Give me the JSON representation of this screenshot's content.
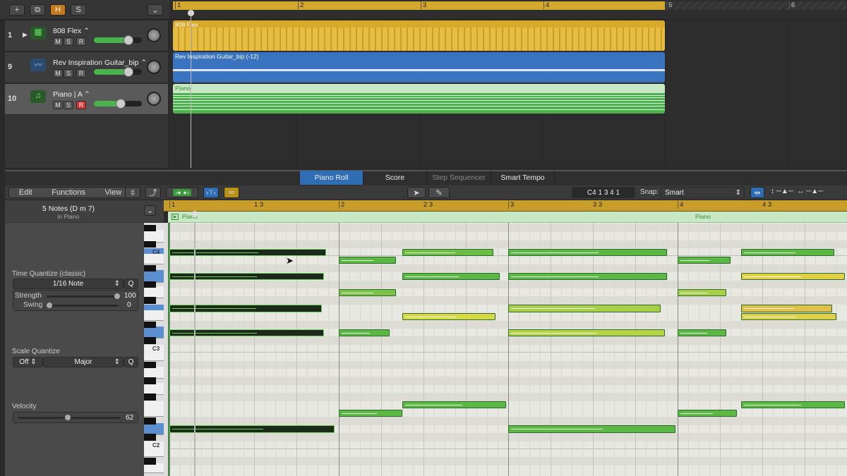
{
  "toolbar": {
    "add": "+",
    "duplicate_icon": "duplicate-track-icon",
    "h": "H",
    "s": "S"
  },
  "ruler": {
    "bars": [
      "1",
      "2",
      "3",
      "4",
      "5",
      "6"
    ]
  },
  "tracks": [
    {
      "num": "1",
      "name": "808 Flex ⌃",
      "icon": "drum-machine-icon",
      "m": "M",
      "s": "S",
      "r": "R",
      "volume": 0.72,
      "record_armed": false,
      "region": "808 Flex",
      "region_color": "#d9a92a"
    },
    {
      "num": "9",
      "name": "Rev Inspiration Guitar_bip ⌃",
      "icon": "waveform-icon",
      "m": "M",
      "s": "S",
      "r": "R",
      "volume": 0.72,
      "record_armed": false,
      "region": "Rev Inspiration Guitar_bip (-12)",
      "region_color": "#3a74c0"
    },
    {
      "num": "10",
      "name": "Piano  |  A ⌃",
      "icon": "music-note-icon",
      "m": "M",
      "s": "S",
      "r": "R",
      "volume": 0.56,
      "record_armed": true,
      "region": "Piano",
      "region_color": "#4bb34b"
    }
  ],
  "editor": {
    "tabs": [
      "Piano Roll",
      "Score",
      "Step Sequencer",
      "Smart Tempo"
    ],
    "active_tab": "Piano Roll",
    "menus": [
      "Edit",
      "Functions",
      "View"
    ],
    "position": "C4  1 3 4 1",
    "snap_label": "Snap:",
    "snap_value": "Smart",
    "ruler": [
      "1",
      "1 3",
      "2",
      "2 3",
      "3",
      "3 3",
      "4",
      "4 3"
    ],
    "region_name": "Piano",
    "region_name2": "Piano",
    "inspector": {
      "title": "5 Notes (D m 7)",
      "subtitle": "in Piano",
      "time_quantize_label": "Time Quantize (classic)",
      "time_quantize_value": "1/16 Note",
      "q": "Q",
      "strength_label": "Strength",
      "strength": "100",
      "swing_label": "Swing",
      "swing": "0",
      "scale_quantize_label": "Scale Quantize",
      "scale_off": "Off",
      "scale_mode": "Major",
      "velocity_label": "Velocity",
      "velocity": "62"
    },
    "key_labels": {
      "C4": "C4",
      "C3": "C3",
      "C2": "C2"
    },
    "notes": [
      {
        "pitch": "C4",
        "start": 1.0,
        "len": 3.7,
        "color": "#1c2a1c",
        "selected": true
      },
      {
        "pitch": "A3",
        "start": 1.0,
        "len": 3.65,
        "color": "#1c2a1c",
        "selected": true
      },
      {
        "pitch": "F3",
        "start": 1.0,
        "len": 3.6,
        "color": "#1c2a1c",
        "selected": true
      },
      {
        "pitch": "D3",
        "start": 1.0,
        "len": 3.65,
        "color": "#1c2a1c",
        "selected": true
      },
      {
        "pitch": "D2",
        "start": 1.0,
        "len": 3.9,
        "color": "#1c2a1c",
        "selected": true
      },
      {
        "pitch": "B3",
        "start": 5.0,
        "len": 1.35,
        "color": "#5cb844"
      },
      {
        "pitch": "G3",
        "start": 5.0,
        "len": 1.35,
        "color": "#7cc248"
      },
      {
        "pitch": "D3",
        "start": 5.0,
        "len": 1.2,
        "color": "#5cb844"
      },
      {
        "pitch": "E2",
        "start": 5.0,
        "len": 1.5,
        "color": "#5cb844"
      },
      {
        "pitch": "C4",
        "start": 6.5,
        "len": 2.15,
        "color": "#6cbd44"
      },
      {
        "pitch": "A3",
        "start": 6.5,
        "len": 2.3,
        "color": "#5cb844"
      },
      {
        "pitch": "E3",
        "start": 6.5,
        "len": 2.2,
        "color": "#d8d844"
      },
      {
        "pitch": "F2",
        "start": 6.5,
        "len": 2.45,
        "color": "#5cb844"
      },
      {
        "pitch": "C4",
        "start": 9.0,
        "len": 3.75,
        "color": "#5cb844"
      },
      {
        "pitch": "A3",
        "start": 9.0,
        "len": 3.75,
        "color": "#5cb844"
      },
      {
        "pitch": "F3",
        "start": 9.0,
        "len": 3.6,
        "color": "#a8cf48"
      },
      {
        "pitch": "D3",
        "start": 9.0,
        "len": 3.7,
        "color": "#b4d448"
      },
      {
        "pitch": "D2",
        "start": 9.0,
        "len": 3.95,
        "color": "#5cb844"
      },
      {
        "pitch": "B3",
        "start": 13.0,
        "len": 1.25,
        "color": "#5cb844"
      },
      {
        "pitch": "G3",
        "start": 13.0,
        "len": 1.15,
        "color": "#a8cf48"
      },
      {
        "pitch": "D3",
        "start": 13.0,
        "len": 1.15,
        "color": "#5cb844"
      },
      {
        "pitch": "E2",
        "start": 13.0,
        "len": 1.4,
        "color": "#5cb844"
      },
      {
        "pitch": "C4",
        "start": 14.5,
        "len": 2.2,
        "color": "#5cb844"
      },
      {
        "pitch": "A3",
        "start": 14.5,
        "len": 2.45,
        "color": "#e0d048"
      },
      {
        "pitch": "F3",
        "start": 14.5,
        "len": 2.15,
        "color": "#e0c048"
      },
      {
        "pitch": "E3",
        "start": 14.5,
        "len": 2.25,
        "color": "#e0d048"
      },
      {
        "pitch": "F2",
        "start": 14.5,
        "len": 2.45,
        "color": "#5cb844"
      }
    ]
  }
}
